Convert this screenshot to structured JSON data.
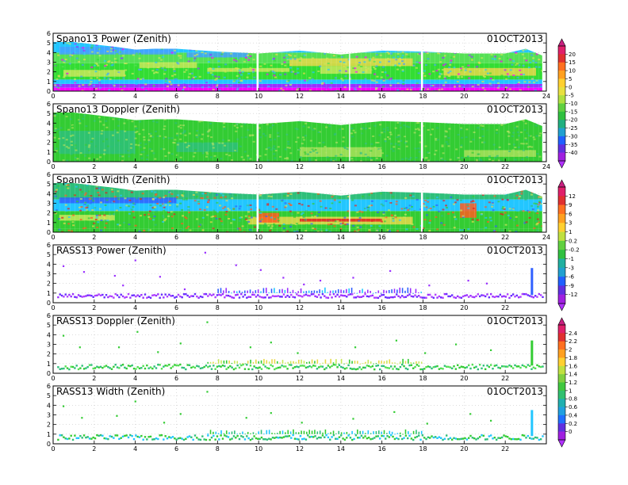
{
  "chart_data": [
    {
      "type": "heatmap",
      "title": "Spano13 Power (Zenith)",
      "date": "01OCT2013",
      "x_ticks": [
        "0",
        "2",
        "4",
        "6",
        "8",
        "10",
        "12",
        "14",
        "16",
        "18",
        "20",
        "22",
        "24"
      ],
      "y_ticks": [
        "0",
        "1",
        "2",
        "3",
        "4",
        "5",
        "6"
      ],
      "xlim": [
        0,
        24
      ],
      "ylim": [
        0,
        6
      ],
      "colorbar": "A",
      "top_profile_km": [
        [
          0,
          5.1
        ],
        [
          1,
          5.1
        ],
        [
          3,
          4.6
        ],
        [
          4,
          4.3
        ],
        [
          5,
          4.4
        ],
        [
          6,
          4.4
        ],
        [
          8,
          4.1
        ],
        [
          10,
          3.9
        ],
        [
          12,
          4.2
        ],
        [
          14,
          3.8
        ],
        [
          16,
          4.2
        ],
        [
          18,
          4.1
        ],
        [
          20,
          3.9
        ],
        [
          22,
          3.9
        ],
        [
          23,
          4.4
        ],
        [
          23.8,
          3.7
        ]
      ],
      "bands": [
        {
          "y0": 0.0,
          "y1": 0.35,
          "color": "#ff00ff"
        },
        {
          "y0": 0.35,
          "y1": 0.75,
          "color": "#9a30ff"
        },
        {
          "y0": 0.75,
          "y1": 1.2,
          "color": "#22c6ff"
        },
        {
          "y0": 1.2,
          "y1": 2.9,
          "color": "#33dd33"
        },
        {
          "y0": 2.9,
          "y1": 4.0,
          "color": "#55e055"
        },
        {
          "y0": 4.0,
          "y1": 6.0,
          "color": "#22c6ff"
        }
      ],
      "patches": [
        {
          "x0": 0.5,
          "x1": 3.5,
          "y0": 1.5,
          "y1": 2.2,
          "color": "#c8e85a"
        },
        {
          "x0": 4.2,
          "x1": 7.0,
          "y0": 2.4,
          "y1": 3.0,
          "color": "#c8e85a"
        },
        {
          "x0": 7.5,
          "x1": 11.5,
          "y0": 2.0,
          "y1": 2.4,
          "color": "#c8e85a"
        },
        {
          "x0": 11.5,
          "x1": 17.5,
          "y0": 2.6,
          "y1": 3.4,
          "color": "#e8d84a"
        },
        {
          "x0": 13.0,
          "x1": 15.5,
          "y0": 1.8,
          "y1": 2.6,
          "color": "#c8e85a"
        },
        {
          "x0": 19.0,
          "x1": 23.5,
          "y0": 1.6,
          "y1": 2.4,
          "color": "#e8d84a"
        },
        {
          "x0": 0.3,
          "x1": 6.0,
          "y0": 3.8,
          "y1": 4.6,
          "color": "#44a0ff"
        },
        {
          "x0": 6.5,
          "x1": 9.5,
          "y0": 3.5,
          "y1": 4.0,
          "color": "#44a0ff"
        }
      ]
    },
    {
      "type": "heatmap",
      "title": "Spano13 Doppler (Zenith)",
      "date": "01OCT2013",
      "x_ticks": [
        "0",
        "2",
        "4",
        "6",
        "8",
        "10",
        "12",
        "14",
        "16",
        "18",
        "20",
        "22",
        "24"
      ],
      "y_ticks": [
        "0",
        "1",
        "2",
        "3",
        "4",
        "5",
        "6"
      ],
      "xlim": [
        0,
        24
      ],
      "ylim": [
        0,
        6
      ],
      "colorbar": "A",
      "top_profile_km": [
        [
          0,
          5.1
        ],
        [
          1,
          5.1
        ],
        [
          3,
          4.6
        ],
        [
          4,
          4.3
        ],
        [
          5,
          4.4
        ],
        [
          6,
          4.4
        ],
        [
          8,
          4.1
        ],
        [
          10,
          3.9
        ],
        [
          12,
          4.2
        ],
        [
          14,
          3.8
        ],
        [
          16,
          4.2
        ],
        [
          18,
          4.1
        ],
        [
          20,
          3.9
        ],
        [
          22,
          3.9
        ],
        [
          23,
          4.4
        ],
        [
          23.8,
          3.7
        ]
      ],
      "bands": [
        {
          "y0": 0.0,
          "y1": 6.0,
          "color": "#33cc33"
        }
      ],
      "patches": [
        {
          "x0": 0.3,
          "x1": 4.0,
          "y0": 0.8,
          "y1": 3.2,
          "color": "#2ebf7a"
        },
        {
          "x0": 6.0,
          "x1": 9.0,
          "y0": 1.0,
          "y1": 2.0,
          "color": "#2ebf7a"
        },
        {
          "x0": 12.0,
          "x1": 16.0,
          "y0": 0.5,
          "y1": 1.5,
          "color": "#a8e05a"
        },
        {
          "x0": 20.0,
          "x1": 23.5,
          "y0": 0.5,
          "y1": 1.2,
          "color": "#a8e05a"
        }
      ]
    },
    {
      "type": "heatmap",
      "title": "Spano13 Width (Zenith)",
      "date": "01OCT2013",
      "x_ticks": [
        "0",
        "2",
        "4",
        "6",
        "8",
        "10",
        "12",
        "14",
        "16",
        "18",
        "20",
        "22",
        "24"
      ],
      "y_ticks": [
        "0",
        "1",
        "2",
        "3",
        "4",
        "5",
        "6"
      ],
      "xlim": [
        0,
        24
      ],
      "ylim": [
        0,
        6
      ],
      "colorbar": "B",
      "top_profile_km": [
        [
          0,
          5.1
        ],
        [
          1,
          5.1
        ],
        [
          3,
          4.6
        ],
        [
          4,
          4.3
        ],
        [
          5,
          4.4
        ],
        [
          6,
          4.4
        ],
        [
          8,
          4.1
        ],
        [
          10,
          3.9
        ],
        [
          12,
          4.2
        ],
        [
          14,
          3.8
        ],
        [
          16,
          4.2
        ],
        [
          18,
          4.1
        ],
        [
          20,
          3.9
        ],
        [
          22,
          3.9
        ],
        [
          23,
          4.4
        ],
        [
          23.8,
          3.7
        ]
      ],
      "bands": [
        {
          "y0": 0.0,
          "y1": 0.4,
          "color": "#33cc33"
        },
        {
          "y0": 0.4,
          "y1": 2.2,
          "color": "#33cc33"
        },
        {
          "y0": 2.2,
          "y1": 3.4,
          "color": "#22c6ff"
        },
        {
          "y0": 3.4,
          "y1": 6.0,
          "color": "#2ebf7a"
        }
      ],
      "patches": [
        {
          "x0": 0.3,
          "x1": 6.0,
          "y0": 3.0,
          "y1": 3.6,
          "color": "#3060ff"
        },
        {
          "x0": 9.5,
          "x1": 17.5,
          "y0": 0.8,
          "y1": 1.6,
          "color": "#e8d84a"
        },
        {
          "x0": 10.0,
          "x1": 11.0,
          "y0": 1.0,
          "y1": 2.0,
          "color": "#ff5a20"
        },
        {
          "x0": 12.0,
          "x1": 16.0,
          "y0": 1.1,
          "y1": 1.4,
          "color": "#e02020"
        },
        {
          "x0": 19.8,
          "x1": 20.6,
          "y0": 1.5,
          "y1": 3.0,
          "color": "#ff5a20"
        },
        {
          "x0": 0.3,
          "x1": 3.0,
          "y0": 1.2,
          "y1": 1.8,
          "color": "#c8e85a"
        }
      ]
    },
    {
      "type": "scatter",
      "title": "RASS13 Power (Zenith)",
      "date": "01OCT2013",
      "x_ticks": [
        "0",
        "2",
        "4",
        "6",
        "8",
        "10",
        "12",
        "14",
        "16",
        "18",
        "20",
        "22"
      ],
      "y_ticks": [
        "0",
        "1",
        "2",
        "3",
        "4",
        "5",
        "6"
      ],
      "xlim": [
        0,
        24
      ],
      "ylim": [
        0,
        6
      ],
      "colorbar": "B",
      "layer_km": [
        0.6,
        1.0
      ],
      "layer_colors": [
        "#9a30ff",
        "#b040ff",
        "#6a2cff"
      ],
      "burst_x0": 8.0,
      "burst_x1": 18.0,
      "burst_top_km": 1.6,
      "burst_colors": [
        "#3060ff",
        "#22c6ff",
        "#9a30ff"
      ],
      "spike": {
        "x": 23.3,
        "y0": 0.8,
        "y1": 3.6,
        "color": "#3060ff"
      },
      "sparse_points": [
        [
          0.5,
          3.8
        ],
        [
          1.5,
          3.2
        ],
        [
          3.0,
          2.8
        ],
        [
          3.4,
          1.8
        ],
        [
          4.0,
          4.4
        ],
        [
          5.2,
          2.7
        ],
        [
          7.4,
          5.2
        ],
        [
          8.9,
          3.9
        ],
        [
          10.1,
          3.4
        ],
        [
          11.2,
          2.6
        ],
        [
          13.0,
          2.3
        ],
        [
          14.6,
          2.6
        ],
        [
          16.4,
          3.3
        ],
        [
          18.3,
          1.8
        ],
        [
          20.2,
          2.3
        ],
        [
          21.1,
          2.0
        ],
        [
          6.4,
          1.4
        ],
        [
          12.2,
          1.9
        ]
      ],
      "sparse_color": "#9a30ff"
    },
    {
      "type": "scatter",
      "title": "RASS13 Doppler (Zenith)",
      "date": "01OCT2013",
      "x_ticks": [
        "0",
        "2",
        "4",
        "6",
        "8",
        "10",
        "12",
        "14",
        "16",
        "18",
        "20",
        "22"
      ],
      "y_ticks": [
        "0",
        "1",
        "2",
        "3",
        "4",
        "5",
        "6"
      ],
      "xlim": [
        0,
        24
      ],
      "ylim": [
        0,
        6
      ],
      "colorbar": "C",
      "layer_km": [
        0.5,
        1.0
      ],
      "layer_colors": [
        "#33cc33",
        "#55e055",
        "#2ebf7a"
      ],
      "burst_x0": 7.5,
      "burst_x1": 18.0,
      "burst_top_km": 1.5,
      "burst_colors": [
        "#c8e85a",
        "#e8d84a",
        "#33cc33"
      ],
      "spike": {
        "x": 23.3,
        "y0": 0.8,
        "y1": 3.4,
        "color": "#33cc33"
      },
      "sparse_points": [
        [
          0.5,
          3.9
        ],
        [
          1.3,
          2.7
        ],
        [
          3.2,
          2.7
        ],
        [
          4.1,
          4.3
        ],
        [
          5.1,
          2.2
        ],
        [
          7.5,
          5.3
        ],
        [
          9.6,
          2.7
        ],
        [
          10.6,
          3.2
        ],
        [
          11.9,
          2.1
        ],
        [
          14.7,
          2.7
        ],
        [
          16.7,
          3.4
        ],
        [
          18.1,
          2.1
        ],
        [
          19.6,
          3.0
        ],
        [
          21.3,
          2.4
        ],
        [
          6.2,
          3.1
        ]
      ],
      "sparse_color": "#33cc33"
    },
    {
      "type": "scatter",
      "title": "RASS13 Width (Zenith)",
      "date": "01OCT2013",
      "x_ticks": [
        "0",
        "2",
        "4",
        "6",
        "8",
        "10",
        "12",
        "14",
        "16",
        "18",
        "20",
        "22"
      ],
      "y_ticks": [
        "0",
        "1",
        "2",
        "3",
        "4",
        "5",
        "6"
      ],
      "xlim": [
        0,
        24
      ],
      "ylim": [
        0,
        6
      ],
      "colorbar": "C",
      "layer_km": [
        0.5,
        1.0
      ],
      "layer_colors": [
        "#22c6ff",
        "#33cc33",
        "#2ebf7a"
      ],
      "burst_x0": 7.5,
      "burst_x1": 18.0,
      "burst_top_km": 1.5,
      "burst_colors": [
        "#33cc33",
        "#22c6ff",
        "#2ebf7a"
      ],
      "spike": {
        "x": 23.3,
        "y0": 0.8,
        "y1": 3.5,
        "color": "#22c6ff"
      },
      "sparse_points": [
        [
          0.5,
          3.9
        ],
        [
          1.4,
          2.7
        ],
        [
          3.1,
          2.9
        ],
        [
          4.0,
          4.4
        ],
        [
          5.4,
          2.2
        ],
        [
          7.5,
          5.4
        ],
        [
          9.4,
          2.7
        ],
        [
          10.6,
          3.2
        ],
        [
          12.1,
          2.2
        ],
        [
          14.6,
          2.6
        ],
        [
          16.6,
          3.3
        ],
        [
          18.2,
          2.1
        ],
        [
          20.3,
          3.1
        ],
        [
          21.3,
          2.4
        ],
        [
          6.2,
          3.1
        ]
      ],
      "sparse_color": "#33cc33"
    }
  ],
  "colorbars": {
    "A": {
      "labels": [
        "20",
        "15",
        "10",
        "5",
        "0",
        "-5",
        "-10",
        "-15",
        "-20",
        "-25",
        "-30",
        "-35",
        "-40"
      ],
      "colors": [
        "#e0206a",
        "#e03030",
        "#ff7020",
        "#ffa020",
        "#ffd030",
        "#e8e040",
        "#b0e040",
        "#60d040",
        "#30c040",
        "#20b080",
        "#20a0d0",
        "#2060ff",
        "#6030e0",
        "#a020e0"
      ],
      "tip_top": "#c82080",
      "tip_bottom": "#b030ff"
    },
    "B": {
      "labels": [
        "12",
        "9",
        "6",
        "3",
        "1",
        "0.2",
        "-0.2",
        "-1",
        "-3",
        "-6",
        "-9",
        "-12"
      ],
      "colors": [
        "#e0206a",
        "#e03030",
        "#ff7020",
        "#ffa020",
        "#ffd030",
        "#c0e040",
        "#60d040",
        "#30c040",
        "#20b0a0",
        "#20a0d0",
        "#2060ff",
        "#6030e0",
        "#a020e0"
      ],
      "tip_top": "#c82080",
      "tip_bottom": "#b030ff"
    },
    "C": {
      "labels": [
        "2.4",
        "2.2",
        "2",
        "1.8",
        "1.6",
        "1.4",
        "1.2",
        "1",
        "0.8",
        "0.6",
        "0.4",
        "0.2",
        "0"
      ],
      "colors": [
        "#e0206a",
        "#e03030",
        "#ff7020",
        "#ffa020",
        "#ffd030",
        "#c0e040",
        "#80d040",
        "#40c840",
        "#30c070",
        "#20b0b0",
        "#20a0e0",
        "#2070ff",
        "#6030e0",
        "#a020e0"
      ],
      "tip_top": "#c82080",
      "tip_bottom": "#b030ff"
    }
  }
}
